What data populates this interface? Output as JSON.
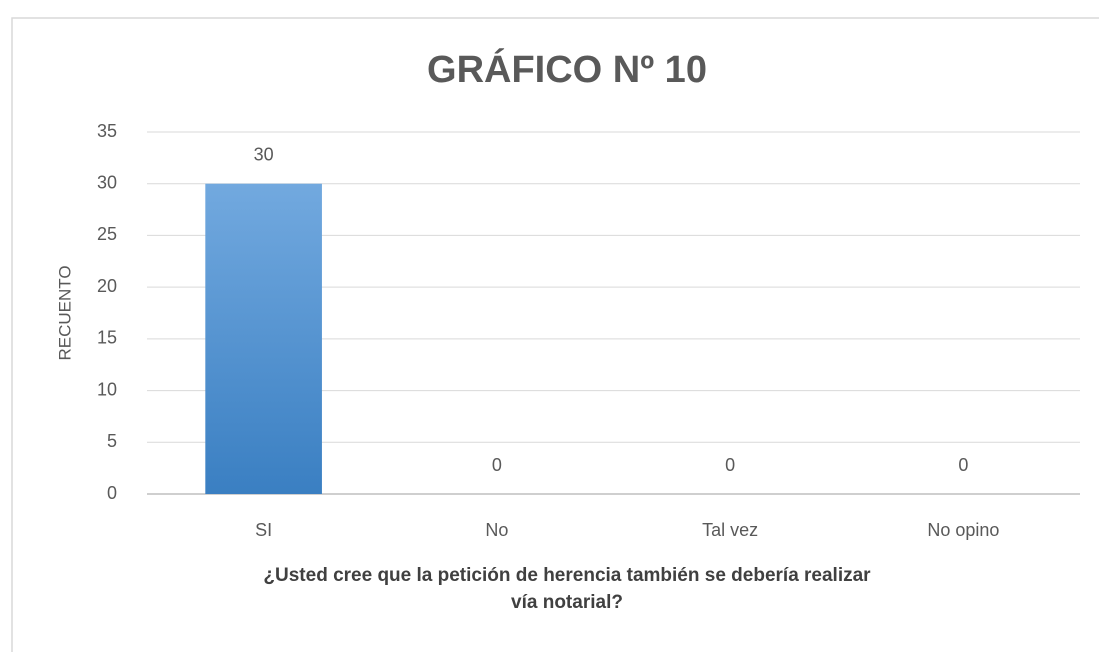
{
  "chart_data": {
    "type": "bar",
    "title": "GRÁFICO Nº 10",
    "x_label": "¿Usted cree que la petición de herencia también se debería realizar vía notarial?",
    "y_label": "RECUENTO",
    "categories": [
      "SI",
      "No",
      "Tal vez",
      "No opino"
    ],
    "values": [
      30,
      0,
      0,
      0
    ],
    "color": "#4a8fd3",
    "ylim": [
      0,
      35
    ],
    "yticks": [
      0,
      5,
      10,
      15,
      20,
      25,
      30,
      35
    ],
    "grid": true
  }
}
